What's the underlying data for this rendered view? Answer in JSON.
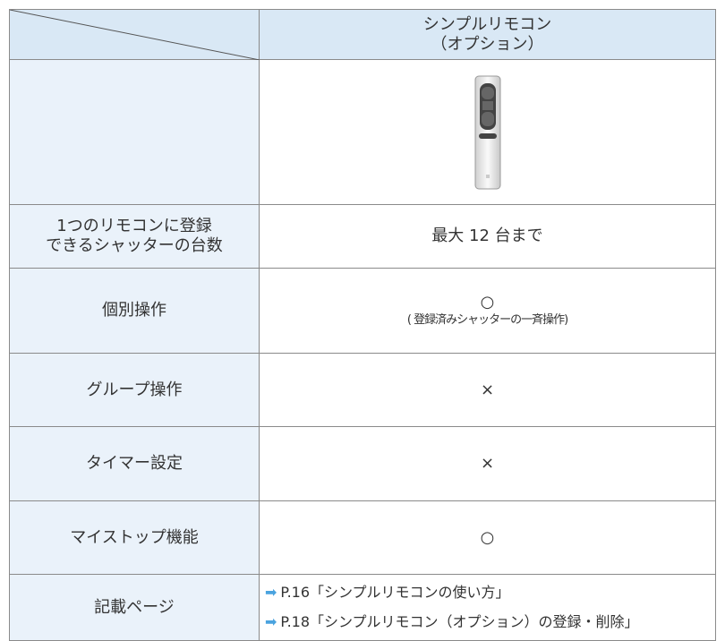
{
  "header": {
    "title_line1": "シンプルリモコン",
    "title_line2": "（オプション）"
  },
  "rows": [
    {
      "label": [
        "1つのリモコンに登録",
        "できるシャッターの台数"
      ],
      "value": "最大 12 台まで"
    },
    {
      "label": [
        "個別操作"
      ],
      "value": "○",
      "note": "( 登録済みシャッターの一斉操作)"
    },
    {
      "label": [
        "グループ操作"
      ],
      "value": "×"
    },
    {
      "label": [
        "タイマー設定"
      ],
      "value": "×"
    },
    {
      "label": [
        "マイストップ機能"
      ],
      "value": "○"
    },
    {
      "label": [
        "記載ページ"
      ],
      "refs": [
        "P.16「シンプルリモコンの使い方」",
        "P.18「シンプルリモコン（オプション）の登録・削除」"
      ]
    }
  ]
}
